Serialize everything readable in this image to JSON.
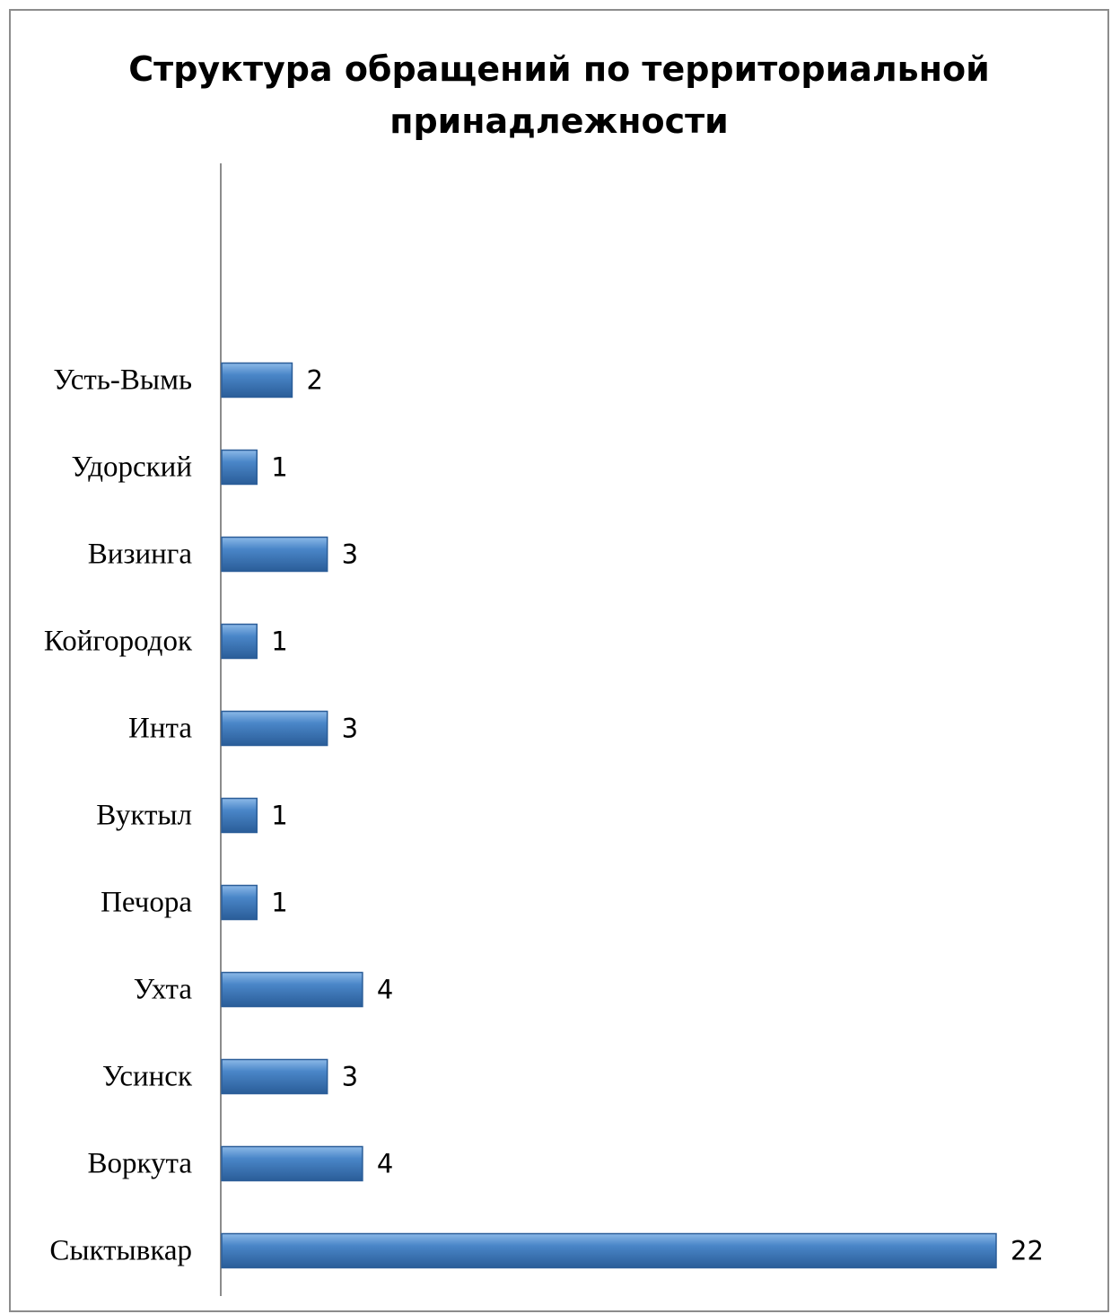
{
  "chart_data": {
    "type": "bar",
    "orientation": "horizontal",
    "title": [
      "Структура обращений по территориальной",
      "принадлежности"
    ],
    "categories": [
      "Сыктывкар",
      "Воркута",
      "Усинск",
      "Ухта",
      "Печора",
      "Вуктыл",
      "Инта",
      "Койгородок",
      "Визинга",
      "Удорский",
      "Усть-Вымь"
    ],
    "values": [
      22,
      4,
      3,
      4,
      1,
      1,
      3,
      1,
      3,
      1,
      2
    ],
    "xlim": [
      0,
      22
    ],
    "grid": false,
    "legend": "none",
    "data_labels": true,
    "colors": {
      "bar": "#4a86c8",
      "bar_light": "#8cb9e8",
      "bar_dark": "#2a5d98",
      "axis": "#8c8c8c"
    }
  }
}
